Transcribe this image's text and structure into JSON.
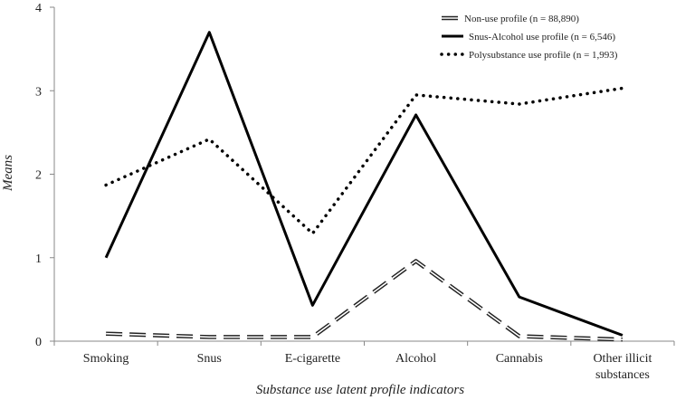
{
  "chart_data": {
    "type": "line",
    "title": "",
    "xlabel": "Substance use latent profile indicators",
    "ylabel": "Means",
    "ylim": [
      0,
      4
    ],
    "yticks": [
      0,
      1,
      2,
      3,
      4
    ],
    "grid": false,
    "legend_position": "top-right",
    "categories": [
      "Smoking",
      "Snus",
      "E-cigarette",
      "Alcohol",
      "Cannabis",
      "Other illicit substances"
    ],
    "series": [
      {
        "name": "Non-use profile (n = 88,890)",
        "style": "dashed",
        "color": "#222222",
        "values": [
          0.09,
          0.05,
          0.05,
          0.96,
          0.06,
          0.02
        ]
      },
      {
        "name": "Snus-Alcohol use profile (n = 6,546)",
        "style": "solid",
        "color": "#000000",
        "values": [
          1.0,
          3.7,
          0.43,
          2.71,
          0.53,
          0.07
        ]
      },
      {
        "name": "Polysubstance use profile (n = 1,993)",
        "style": "dotted",
        "color": "#000000",
        "values": [
          1.87,
          2.42,
          1.29,
          2.95,
          2.84,
          3.03
        ]
      }
    ]
  }
}
